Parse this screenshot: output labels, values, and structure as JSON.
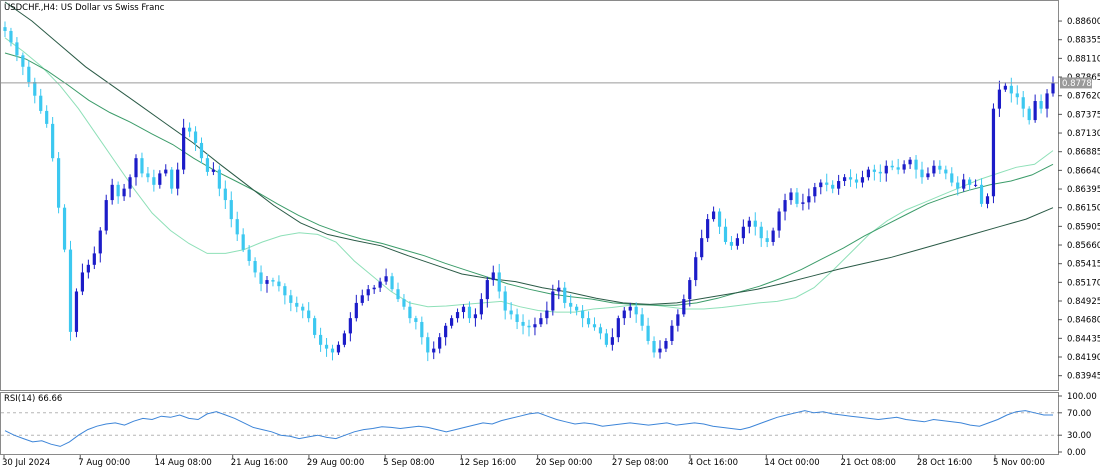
{
  "chart_data": [
    {
      "type": "candlestick",
      "title": "USDCHF.,H4:  US Dollar vs Swiss Franc",
      "current_price": 0.87788,
      "current_price_label": "0.87788",
      "ylim": [
        0.8377,
        0.8885
      ],
      "y_ticks": [
        "0.88600",
        "0.88355",
        "0.88110",
        "0.87865",
        "0.87620",
        "0.87375",
        "0.87130",
        "0.86885",
        "0.86640",
        "0.86395",
        "0.86150",
        "0.85905",
        "0.85660",
        "0.85415",
        "0.85170",
        "0.84925",
        "0.84680",
        "0.84435",
        "0.84190",
        "0.83945"
      ],
      "x_labels": [
        "30 Jul 2024",
        "7 Aug 00:00",
        "14 Aug 08:00",
        "21 Aug 16:00",
        "29 Aug 00:00",
        "5 Sep 08:00",
        "12 Sep 16:00",
        "20 Sep 00:00",
        "27 Sep 08:00",
        "4 Oct 16:00",
        "14 Oct 00:00",
        "21 Oct 08:00",
        "28 Oct 16:00",
        "5 Nov 00:00"
      ],
      "series": [
        {
          "name": "close",
          "kind": "price",
          "color": "#1515cc",
          "values": [
            0.8847,
            0.8832,
            0.8815,
            0.88,
            0.878,
            0.8762,
            0.8742,
            0.8725,
            0.868,
            0.8615,
            0.856,
            0.8452,
            0.8505,
            0.853,
            0.854,
            0.8555,
            0.8585,
            0.8625,
            0.8645,
            0.863,
            0.864,
            0.8655,
            0.868,
            0.866,
            0.8655,
            0.8645,
            0.866,
            0.8665,
            0.864,
            0.8665,
            0.872,
            0.8715,
            0.87,
            0.868,
            0.8662,
            0.8665,
            0.864,
            0.8625,
            0.86,
            0.858,
            0.856,
            0.8545,
            0.853,
            0.8515,
            0.852,
            0.8518,
            0.8512,
            0.85,
            0.849,
            0.8485,
            0.848,
            0.847,
            0.8448,
            0.8435,
            0.843,
            0.8425,
            0.8435,
            0.845,
            0.847,
            0.849,
            0.85,
            0.8508,
            0.851,
            0.8518,
            0.8525,
            0.8508,
            0.8495,
            0.8485,
            0.847,
            0.8465,
            0.8445,
            0.8425,
            0.843,
            0.8445,
            0.846,
            0.847,
            0.8478,
            0.8485,
            0.847,
            0.8475,
            0.8495,
            0.852,
            0.853,
            0.8505,
            0.848,
            0.8475,
            0.8465,
            0.846,
            0.8458,
            0.8462,
            0.847,
            0.848,
            0.8505,
            0.851,
            0.849,
            0.8485,
            0.848,
            0.847,
            0.8462,
            0.8458,
            0.845,
            0.8435,
            0.8445,
            0.847,
            0.848,
            0.8485,
            0.8475,
            0.846,
            0.844,
            0.8425,
            0.843,
            0.844,
            0.846,
            0.8475,
            0.8495,
            0.852,
            0.855,
            0.8575,
            0.86,
            0.861,
            0.859,
            0.857,
            0.8565,
            0.8575,
            0.859,
            0.8598,
            0.859,
            0.8575,
            0.857,
            0.8585,
            0.861,
            0.8625,
            0.8635,
            0.862,
            0.8622,
            0.863,
            0.8642,
            0.8648,
            0.8645,
            0.864,
            0.865,
            0.8655,
            0.8652,
            0.8648,
            0.8655,
            0.8665,
            0.8662,
            0.866,
            0.867,
            0.8668,
            0.8665,
            0.8672,
            0.8678,
            0.8665,
            0.8655,
            0.866,
            0.867,
            0.8665,
            0.866,
            0.8648,
            0.864,
            0.8652,
            0.8645,
            0.8645,
            0.862,
            0.863,
            0.8745,
            0.877,
            0.8775,
            0.8765,
            0.876,
            0.8745,
            0.873,
            0.8755,
            0.8745,
            0.8765,
            0.8779
          ]
        },
        {
          "name": "MA fast",
          "kind": "ma",
          "color": "#8ee0b8",
          "values": [
            0.8838,
            0.882,
            0.88,
            0.8775,
            0.8745,
            0.871,
            0.8675,
            0.864,
            0.8608,
            0.8585,
            0.8568,
            0.8555,
            0.8555,
            0.856,
            0.857,
            0.8578,
            0.8582,
            0.858,
            0.857,
            0.8545,
            0.8525,
            0.8505,
            0.849,
            0.8485,
            0.8486,
            0.8488,
            0.849,
            0.8492,
            0.8485,
            0.848,
            0.8478,
            0.8478,
            0.8482,
            0.8484,
            0.8487,
            0.8488,
            0.8485,
            0.8482,
            0.8482,
            0.8484,
            0.8487,
            0.849,
            0.8492,
            0.8497,
            0.851,
            0.8532,
            0.8556,
            0.858,
            0.8598,
            0.8612,
            0.8622,
            0.8632,
            0.8642,
            0.8652,
            0.866,
            0.8668,
            0.8672,
            0.869
          ]
        },
        {
          "name": "MA medium",
          "kind": "ma",
          "color": "#3c9c6a",
          "values": [
            0.8818,
            0.881,
            0.8795,
            0.8776,
            0.8756,
            0.874,
            0.8727,
            0.8712,
            0.8698,
            0.868,
            0.8664,
            0.865,
            0.8636,
            0.862,
            0.8605,
            0.8592,
            0.8582,
            0.8574,
            0.8568,
            0.856,
            0.8552,
            0.8542,
            0.8533,
            0.8524,
            0.8515,
            0.8508,
            0.8502,
            0.8498,
            0.8495,
            0.849,
            0.8488,
            0.8487,
            0.8487,
            0.849,
            0.8496,
            0.8504,
            0.8512,
            0.8522,
            0.8534,
            0.8548,
            0.8562,
            0.8578,
            0.8592,
            0.8606,
            0.862,
            0.863,
            0.8638,
            0.8645,
            0.865,
            0.8658,
            0.8672
          ]
        },
        {
          "name": "MA slow",
          "kind": "ma",
          "color": "#2a5a46",
          "values": [
            0.8885,
            0.886,
            0.883,
            0.88,
            0.8775,
            0.875,
            0.8725,
            0.87,
            0.8672,
            0.8645,
            0.8618,
            0.8595,
            0.858,
            0.8572,
            0.8565,
            0.8552,
            0.854,
            0.8528,
            0.8522,
            0.8518,
            0.851,
            0.8504,
            0.8496,
            0.849,
            0.8488,
            0.849,
            0.8496,
            0.8502,
            0.8508,
            0.8516,
            0.8525,
            0.8534,
            0.8542,
            0.855,
            0.856,
            0.857,
            0.858,
            0.859,
            0.86,
            0.8615
          ]
        }
      ]
    },
    {
      "type": "line",
      "title": "RSI(14) 66.66",
      "ylim": [
        0,
        100
      ],
      "y_ticks": [
        "100.00",
        "70.00",
        "30.00",
        "0.00"
      ],
      "levels": [
        70,
        30
      ],
      "series": [
        {
          "name": "RSI(14)",
          "color": "#3d85d8",
          "values": [
            38,
            30,
            24,
            18,
            20,
            14,
            10,
            18,
            30,
            40,
            46,
            50,
            52,
            48,
            55,
            60,
            58,
            64,
            62,
            66,
            60,
            58,
            68,
            72,
            66,
            60,
            52,
            44,
            40,
            36,
            30,
            28,
            24,
            27,
            30,
            26,
            24,
            30,
            36,
            40,
            42,
            45,
            44,
            42,
            44,
            46,
            44,
            40,
            36,
            40,
            44,
            48,
            52,
            50,
            56,
            60,
            64,
            68,
            70,
            64,
            58,
            54,
            50,
            52,
            50,
            46,
            48,
            50,
            52,
            50,
            48,
            50,
            52,
            48,
            50,
            52,
            50,
            46,
            44,
            42,
            40,
            44,
            50,
            56,
            62,
            66,
            70,
            74,
            70,
            72,
            68,
            66,
            64,
            62,
            60,
            58,
            60,
            62,
            58,
            56,
            54,
            58,
            56,
            54,
            52,
            48,
            46,
            52,
            58,
            66,
            72,
            74,
            70,
            66,
            66
          ]
        }
      ]
    }
  ]
}
